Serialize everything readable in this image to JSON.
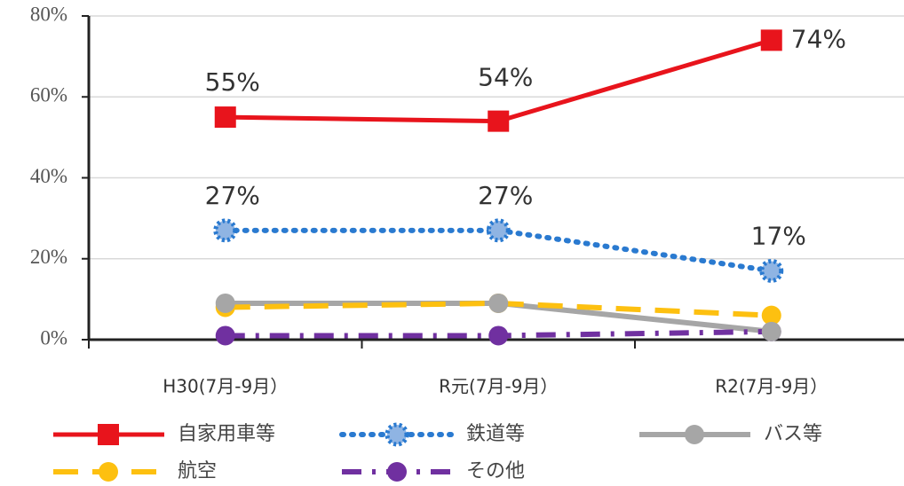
{
  "chart_data": {
    "type": "line",
    "categories": [
      "H30(7月-9月）",
      "R元(7月-9月）",
      "R2(7月-9月）"
    ],
    "series": [
      {
        "name": "自家用車等",
        "color": "#e8141c",
        "line_style": "solid",
        "marker": "square",
        "values": [
          55,
          54,
          74
        ],
        "value_labels": [
          "55%",
          "54%",
          "74%"
        ]
      },
      {
        "name": "鉄道等",
        "color": "#2a7ad0",
        "line_style": "dotted",
        "marker": "star",
        "values": [
          27,
          27,
          17
        ],
        "value_labels": [
          "27%",
          "27%",
          "17%"
        ]
      },
      {
        "name": "バス等",
        "color": "#a6a6a6",
        "line_style": "solid",
        "marker": "circle",
        "values": [
          9,
          9,
          2
        ]
      },
      {
        "name": "航空",
        "color": "#fdc010",
        "line_style": "dashed",
        "marker": "circle",
        "values": [
          8,
          9,
          6
        ]
      },
      {
        "name": "その他",
        "color": "#7030a0",
        "line_style": "dashdot",
        "marker": "circle",
        "values": [
          1,
          1,
          2
        ]
      }
    ],
    "ylim": [
      0,
      80
    ],
    "yticks": [
      {
        "value": 0,
        "label": "0%"
      },
      {
        "value": 20,
        "label": "20%"
      },
      {
        "value": 40,
        "label": "40%"
      },
      {
        "value": 60,
        "label": "60%"
      },
      {
        "value": 80,
        "label": "80%"
      }
    ],
    "grid": true,
    "legend": "bottom"
  }
}
